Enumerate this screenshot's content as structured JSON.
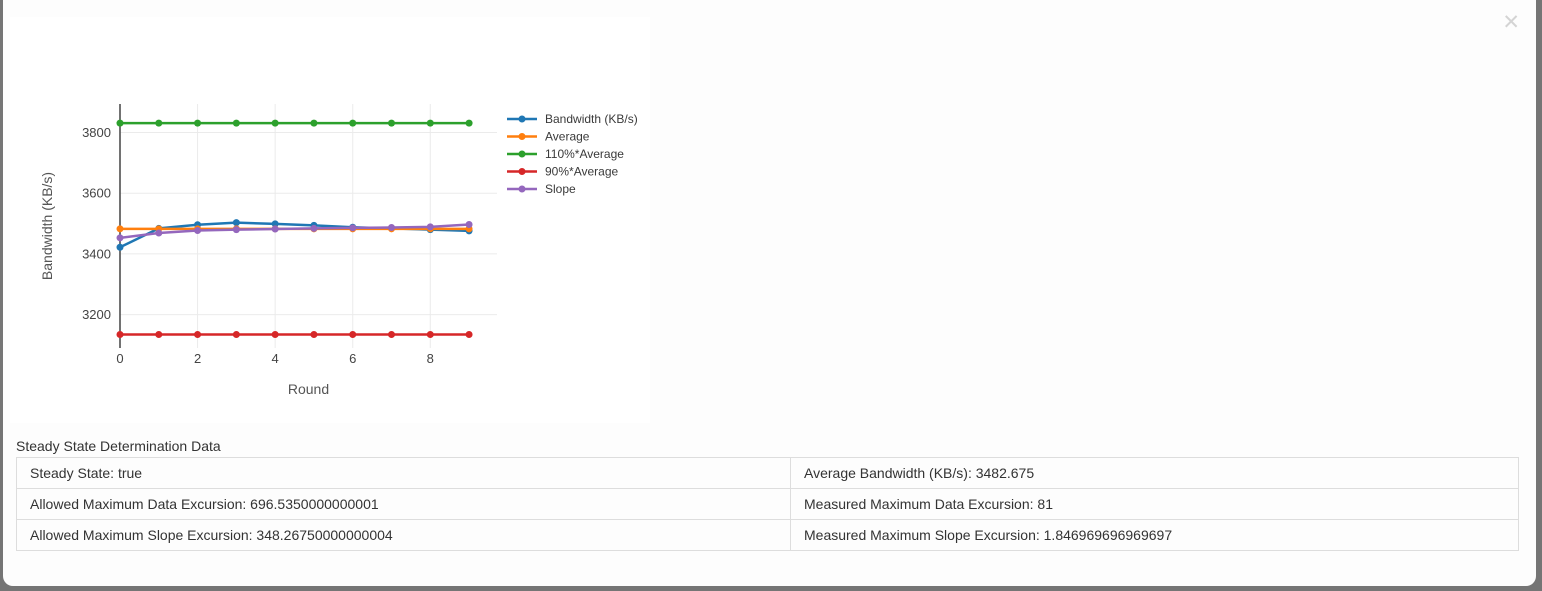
{
  "icons": {
    "close": "✕"
  },
  "section": {
    "title": "Steady State Determination Data"
  },
  "table": {
    "rows": [
      [
        "Steady State: true",
        "Average Bandwidth (KB/s): 3482.675"
      ],
      [
        "Allowed Maximum Data Excursion: 696.5350000000001",
        "Measured Maximum Data Excursion: 81"
      ],
      [
        "Allowed Maximum Slope Excursion: 348.26750000000004",
        "Measured Maximum Slope Excursion: 1.846969696969697"
      ]
    ]
  },
  "chart_data": {
    "type": "line",
    "title": "",
    "xlabel": "Round",
    "ylabel": "Bandwidth (KB/s)",
    "x": [
      0,
      1,
      2,
      3,
      4,
      5,
      6,
      7,
      8,
      9
    ],
    "xticks": [
      0,
      2,
      4,
      6,
      8
    ],
    "yticks": [
      3200,
      3400,
      3600,
      3800
    ],
    "xlim": [
      0,
      9.72
    ],
    "ylim": [
      3090,
      3894
    ],
    "grid": true,
    "legend_position": "right",
    "series": [
      {
        "name": "Bandwidth (KB/s)",
        "color": "#1f77b4",
        "values": [
          3422,
          3484,
          3496,
          3503,
          3499,
          3494,
          3488,
          3484,
          3480,
          3476
        ]
      },
      {
        "name": "Average",
        "color": "#ff7f0e",
        "values": [
          3482.675,
          3482.675,
          3482.675,
          3482.675,
          3482.675,
          3482.675,
          3482.675,
          3482.675,
          3482.675,
          3482.675
        ]
      },
      {
        "name": "110%*Average",
        "color": "#2ca02c",
        "values": [
          3830.9425,
          3830.9425,
          3830.9425,
          3830.9425,
          3830.9425,
          3830.9425,
          3830.9425,
          3830.9425,
          3830.9425,
          3830.9425
        ]
      },
      {
        "name": "90%*Average",
        "color": "#d62728",
        "values": [
          3134.4075,
          3134.4075,
          3134.4075,
          3134.4075,
          3134.4075,
          3134.4075,
          3134.4075,
          3134.4075,
          3134.4075,
          3134.4075
        ]
      },
      {
        "name": "Slope",
        "color": "#9467bd",
        "values": [
          3453,
          3469,
          3477,
          3480,
          3482,
          3484,
          3486,
          3487,
          3489,
          3497
        ]
      }
    ]
  }
}
